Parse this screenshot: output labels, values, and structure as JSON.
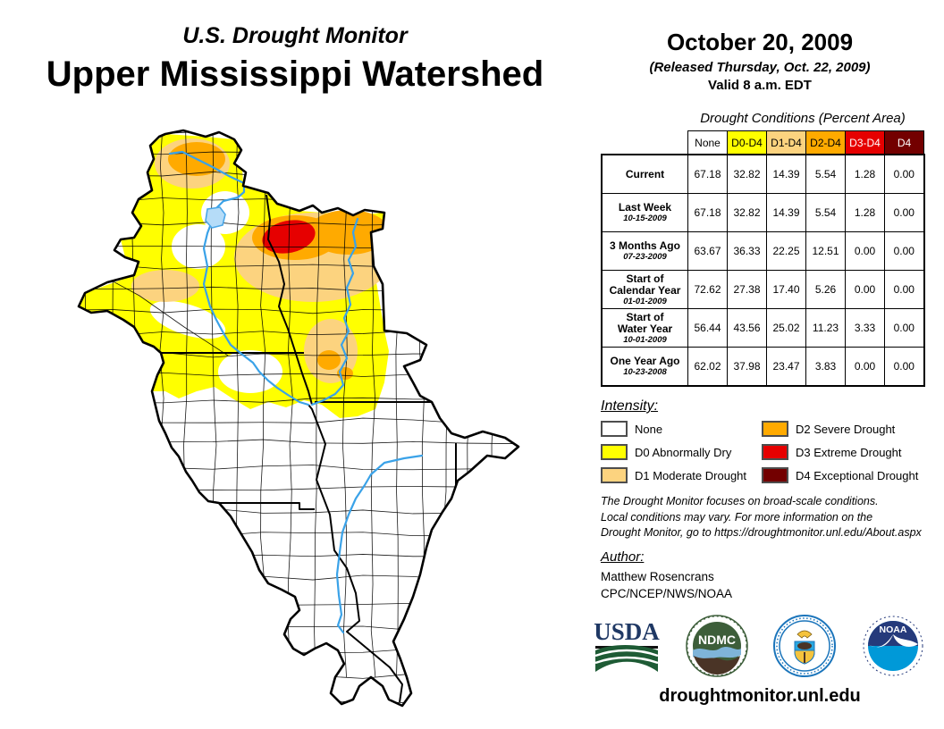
{
  "header": {
    "supertitle": "U.S. Drought Monitor",
    "title": "Upper Mississippi Watershed"
  },
  "date_block": {
    "date": "October 20, 2009",
    "released": "(Released Thursday, Oct. 22, 2009)",
    "valid": "Valid 8 a.m. EDT"
  },
  "table": {
    "caption": "Drought Conditions (Percent Area)",
    "columns": [
      "None",
      "D0-D4",
      "D1-D4",
      "D2-D4",
      "D3-D4",
      "D4"
    ],
    "header_colors": [
      "#FFFFFF",
      "#FFFF00",
      "#FCD37F",
      "#FFAA00",
      "#E60000",
      "#730000"
    ],
    "header_text_colors": [
      "#000000",
      "#000000",
      "#000000",
      "#000000",
      "#FFFFFF",
      "#FFFFFF"
    ],
    "rows": [
      {
        "label_lines": [
          "Current"
        ],
        "date": "",
        "values": [
          "67.18",
          "32.82",
          "14.39",
          "5.54",
          "1.28",
          "0.00"
        ]
      },
      {
        "label_lines": [
          "Last Week"
        ],
        "date": "10-15-2009",
        "values": [
          "67.18",
          "32.82",
          "14.39",
          "5.54",
          "1.28",
          "0.00"
        ]
      },
      {
        "label_lines": [
          "3 Months Ago"
        ],
        "date": "07-23-2009",
        "values": [
          "63.67",
          "36.33",
          "22.25",
          "12.51",
          "0.00",
          "0.00"
        ]
      },
      {
        "label_lines": [
          "Start of",
          "Calendar Year"
        ],
        "date": "01-01-2009",
        "values": [
          "72.62",
          "27.38",
          "17.40",
          "5.26",
          "0.00",
          "0.00"
        ]
      },
      {
        "label_lines": [
          "Start of",
          "Water Year"
        ],
        "date": "10-01-2009",
        "values": [
          "56.44",
          "43.56",
          "25.02",
          "11.23",
          "3.33",
          "0.00"
        ]
      },
      {
        "label_lines": [
          "One Year Ago"
        ],
        "date": "10-23-2008",
        "values": [
          "62.02",
          "37.98",
          "23.47",
          "3.83",
          "0.00",
          "0.00"
        ]
      }
    ]
  },
  "legend": {
    "title": "Intensity:",
    "items": [
      {
        "code": "none",
        "label": "None",
        "color": "#FFFFFF"
      },
      {
        "code": "d0",
        "label": "D0 Abnormally Dry",
        "color": "#FFFF00"
      },
      {
        "code": "d1",
        "label": "D1 Moderate Drought",
        "color": "#FCD37F"
      },
      {
        "code": "d2",
        "label": "D2 Severe Drought",
        "color": "#FFAA00"
      },
      {
        "code": "d3",
        "label": "D3 Extreme Drought",
        "color": "#E60000"
      },
      {
        "code": "d4",
        "label": "D4 Exceptional Drought",
        "color": "#730000"
      }
    ]
  },
  "disclaimer": {
    "line1": "The Drought Monitor focuses on broad-scale conditions.",
    "line2": "Local conditions may vary. For more information on the",
    "line3": "Drought Monitor, go to https://droughtmonitor.unl.edu/About.aspx"
  },
  "author": {
    "title": "Author:",
    "name": "Matthew Rosencrans",
    "org": "CPC/NCEP/NWS/NOAA"
  },
  "logos": {
    "usda": "USDA",
    "ndmc": "NDMC",
    "noaa": "NOAA"
  },
  "footer": {
    "url": "droughtmonitor.unl.edu"
  },
  "map": {
    "colors": {
      "none": "#FFFFFF",
      "d0": "#FFFF00",
      "d1": "#FCD37F",
      "d2": "#FFAA00",
      "d3": "#E60000",
      "d4": "#730000",
      "river": "#3AA2E8",
      "lake_fill": "#B5DCF8",
      "lake_stroke": "#4AA7E8",
      "boundary": "#000000"
    }
  }
}
